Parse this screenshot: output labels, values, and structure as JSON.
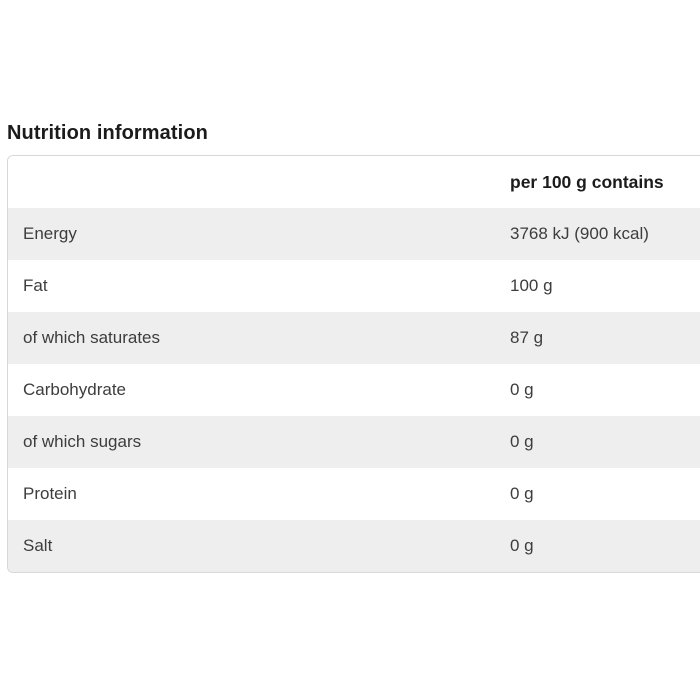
{
  "page": {
    "heading": "Nutrition information"
  },
  "table": {
    "value_header": "per 100 g contains",
    "rows": [
      {
        "label": "Energy",
        "value": "3768 kJ (900 kcal)"
      },
      {
        "label": "Fat",
        "value": "100 g"
      },
      {
        "label": "of which saturates",
        "value": "87 g"
      },
      {
        "label": "Carbohydrate",
        "value": "0 g"
      },
      {
        "label": "of which sugars",
        "value": "0 g"
      },
      {
        "label": "Protein",
        "value": "0 g"
      },
      {
        "label": "Salt",
        "value": "0 g"
      }
    ]
  },
  "colors": {
    "background": "#ffffff",
    "stripe": "#eeeeee",
    "border": "#d8d8d8",
    "heading_text": "#1b1b1b",
    "row_text": "#3d3d3d"
  }
}
